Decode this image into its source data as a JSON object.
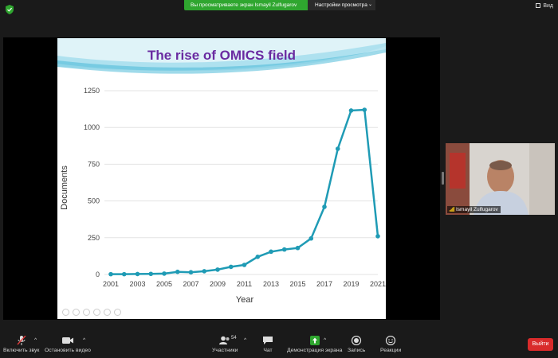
{
  "topbar": {
    "share_banner": "Вы просматриваете экран Ismayil Zulfugarov",
    "view_settings": "Настройки просмотра",
    "view_toggle": "Вид",
    "icons": {
      "security": "shield-check-icon",
      "caret": "chevron-down-icon",
      "view": "grid-view-icon"
    }
  },
  "slide": {
    "title": "The rise of OMICS field",
    "title_color": "#6a2ba1"
  },
  "chart_data": {
    "type": "line",
    "title": "The rise of OMICS field",
    "xlabel": "Year",
    "ylabel": "Documents",
    "xlim": [
      2001,
      2021
    ],
    "ylim": [
      0,
      1250
    ],
    "x_ticks": [
      "2001",
      "2003",
      "2005",
      "2007",
      "2009",
      "2011",
      "2013",
      "2015",
      "2017",
      "2019",
      "2021"
    ],
    "y_ticks": [
      "0",
      "250",
      "500",
      "750",
      "1000",
      "1250"
    ],
    "grid": true,
    "line_color": "#1f9bb5",
    "series": [
      {
        "x": [
          2001,
          2002,
          2003,
          2004,
          2005,
          2006,
          2007,
          2008,
          2009,
          2010,
          2011,
          2012,
          2013,
          2014,
          2015,
          2016,
          2017,
          2018,
          2019,
          2020,
          2021
        ],
        "values": [
          2,
          2,
          3,
          4,
          6,
          18,
          15,
          22,
          33,
          52,
          65,
          120,
          155,
          170,
          180,
          245,
          460,
          855,
          1115,
          1120,
          260
        ]
      }
    ]
  },
  "participant": {
    "name": "Ismayil Zulfugarov"
  },
  "toolbar": {
    "unmute": "Включить звук",
    "stop_video": "Остановить видео",
    "participants": "Участники",
    "participants_count": "54",
    "chat": "Чат",
    "share_screen": "Демонстрация экрана",
    "record": "Запись",
    "reactions": "Реакции",
    "leave": "Выйти",
    "share_color": "#2fa62f",
    "leave_color": "#d92b2b"
  }
}
